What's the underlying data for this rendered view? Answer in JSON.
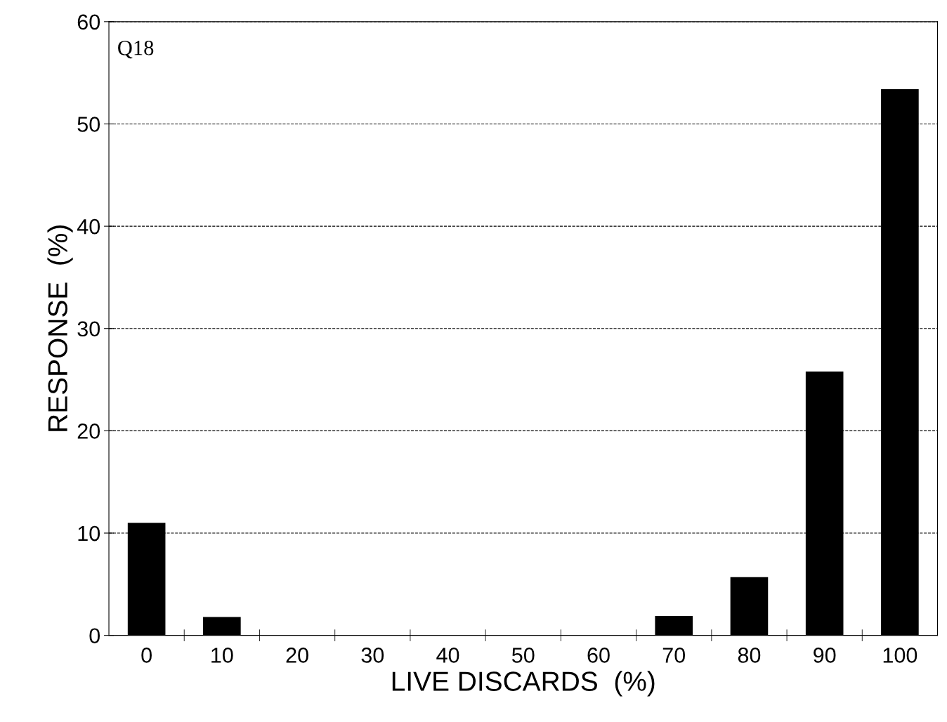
{
  "chart_data": {
    "type": "bar",
    "xlabel": "LIVE DISCARDS  (%)",
    "ylabel": "RESPONSE  (%)",
    "annotations": [
      "Q18"
    ],
    "categories": [
      "0",
      "10",
      "20",
      "30",
      "40",
      "50",
      "60",
      "70",
      "80",
      "90",
      "100"
    ],
    "values": [
      11.0,
      1.8,
      0,
      0,
      0,
      0,
      0,
      1.9,
      5.7,
      25.8,
      53.4
    ],
    "color": "#000000",
    "ylim": [
      0,
      60
    ],
    "yticks": [
      0,
      10,
      20,
      30,
      40,
      50,
      60
    ],
    "grid": "y",
    "line_style": "dashed"
  }
}
